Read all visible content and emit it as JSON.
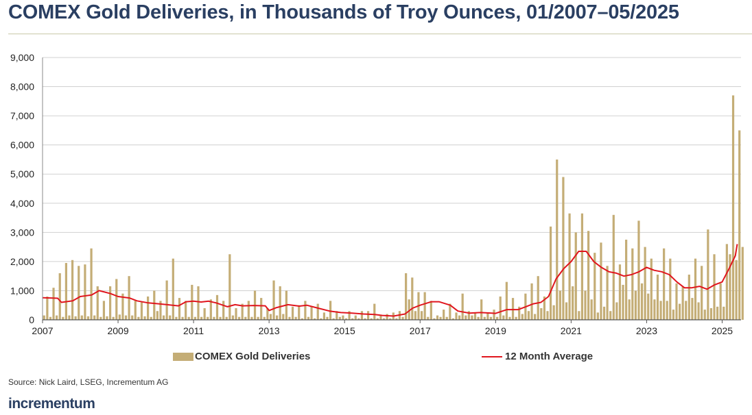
{
  "title": "COMEX Gold Deliveries, in Thousands of Troy Ounces, 01/2007–05/2025",
  "source": "Source: Nick Laird, LSEG, Incrementum AG",
  "brand": "incrementum",
  "colors": {
    "title": "#2a3f62",
    "bars": "#c4ad76",
    "line": "#e0151d",
    "grid": "#d0d0d0",
    "rule": "#c9c9a8"
  },
  "chart_data": {
    "type": "bar",
    "x_start": "2007-01",
    "x_end": "2025-05",
    "y_range": [
      0,
      9000
    ],
    "grid": "horizontal",
    "legend_position": "bottom",
    "y_ticks": [
      "0",
      "1,000",
      "2,000",
      "3,000",
      "4,000",
      "5,000",
      "6,000",
      "7,000",
      "8,000",
      "9,000"
    ],
    "x_ticks": [
      "2007",
      "2009",
      "2011",
      "2013",
      "2015",
      "2017",
      "2019",
      "2021",
      "2023",
      "2025"
    ],
    "series": [
      {
        "name": "COMEX Gold Deliveries",
        "type": "bar",
        "values": [
          150,
          800,
          100,
          1100,
          150,
          1600,
          100,
          1950,
          150,
          2050,
          120,
          1850,
          150,
          1900,
          120,
          2450,
          150,
          1150,
          100,
          650,
          120,
          1150,
          100,
          1400,
          180,
          900,
          150,
          1500,
          150,
          650,
          100,
          600,
          120,
          800,
          100,
          1000,
          300,
          650,
          150,
          1350,
          150,
          2100,
          100,
          750,
          100,
          650,
          100,
          1200,
          100,
          1150,
          100,
          400,
          100,
          700,
          100,
          850,
          100,
          650,
          100,
          2250,
          150,
          400,
          100,
          550,
          100,
          650,
          100,
          1000,
          100,
          750,
          100,
          400,
          200,
          1350,
          150,
          1150,
          200,
          1000,
          100,
          450,
          100,
          500,
          50,
          650,
          100,
          450,
          50,
          550,
          50,
          250,
          100,
          650,
          50,
          300,
          100,
          150,
          50,
          300,
          50,
          150,
          50,
          300,
          50,
          300,
          50,
          550,
          50,
          150,
          50,
          200,
          50,
          250,
          50,
          300,
          100,
          1600,
          700,
          1450,
          300,
          950,
          300,
          950,
          100,
          650,
          50,
          150,
          100,
          350,
          100,
          550,
          50,
          250,
          150,
          900,
          150,
          300,
          150,
          250,
          100,
          700,
          100,
          250,
          100,
          350,
          100,
          800,
          150,
          1300,
          100,
          750,
          100,
          450,
          200,
          900,
          300,
          1250,
          200,
          1500,
          400,
          800,
          300,
          3200,
          500,
          5500,
          1000,
          4900,
          600,
          3650,
          1150,
          3000,
          300,
          3650,
          1000,
          3050,
          700,
          2300,
          250,
          2650,
          450,
          1850,
          300,
          3600,
          600,
          1900,
          1200,
          2750,
          700,
          2450,
          1000,
          3400,
          1250,
          2500,
          900,
          2100,
          700,
          1550,
          650,
          2450,
          650,
          2100,
          350,
          1250,
          550,
          1150,
          650,
          1550,
          750,
          2100,
          600,
          1850,
          350,
          3100,
          400,
          2250,
          450,
          1250,
          450,
          2600,
          2250,
          7700,
          2050,
          6500,
          2500
        ]
      },
      {
        "name": "12 Month Average",
        "type": "line",
        "points": [
          [
            2007.0,
            760
          ],
          [
            2007.4,
            740
          ],
          [
            2007.5,
            600
          ],
          [
            2007.8,
            650
          ],
          [
            2008.0,
            800
          ],
          [
            2008.3,
            850
          ],
          [
            2008.5,
            1000
          ],
          [
            2008.8,
            900
          ],
          [
            2009.0,
            800
          ],
          [
            2009.3,
            750
          ],
          [
            2009.5,
            650
          ],
          [
            2009.8,
            580
          ],
          [
            2010.0,
            560
          ],
          [
            2010.3,
            520
          ],
          [
            2010.6,
            480
          ],
          [
            2010.8,
            620
          ],
          [
            2011.0,
            640
          ],
          [
            2011.2,
            610
          ],
          [
            2011.4,
            640
          ],
          [
            2011.6,
            580
          ],
          [
            2011.9,
            450
          ],
          [
            2012.1,
            520
          ],
          [
            2012.3,
            480
          ],
          [
            2012.6,
            490
          ],
          [
            2012.9,
            480
          ],
          [
            2013.0,
            320
          ],
          [
            2013.2,
            420
          ],
          [
            2013.5,
            520
          ],
          [
            2013.8,
            470
          ],
          [
            2014.0,
            500
          ],
          [
            2014.3,
            400
          ],
          [
            2014.6,
            300
          ],
          [
            2014.9,
            250
          ],
          [
            2015.2,
            230
          ],
          [
            2015.5,
            200
          ],
          [
            2015.8,
            180
          ],
          [
            2016.0,
            150
          ],
          [
            2016.3,
            130
          ],
          [
            2016.6,
            200
          ],
          [
            2016.8,
            400
          ],
          [
            2017.0,
            500
          ],
          [
            2017.3,
            620
          ],
          [
            2017.5,
            620
          ],
          [
            2017.8,
            500
          ],
          [
            2018.0,
            300
          ],
          [
            2018.3,
            230
          ],
          [
            2018.6,
            250
          ],
          [
            2018.9,
            230
          ],
          [
            2019.0,
            220
          ],
          [
            2019.3,
            350
          ],
          [
            2019.6,
            350
          ],
          [
            2019.8,
            450
          ],
          [
            2020.0,
            550
          ],
          [
            2020.2,
            600
          ],
          [
            2020.4,
            800
          ],
          [
            2020.6,
            1400
          ],
          [
            2020.8,
            1750
          ],
          [
            2021.0,
            2000
          ],
          [
            2021.2,
            2350
          ],
          [
            2021.4,
            2350
          ],
          [
            2021.6,
            2000
          ],
          [
            2021.8,
            1800
          ],
          [
            2022.0,
            1650
          ],
          [
            2022.2,
            1600
          ],
          [
            2022.4,
            1500
          ],
          [
            2022.6,
            1550
          ],
          [
            2022.8,
            1650
          ],
          [
            2023.0,
            1800
          ],
          [
            2023.2,
            1700
          ],
          [
            2023.4,
            1650
          ],
          [
            2023.6,
            1550
          ],
          [
            2023.8,
            1300
          ],
          [
            2024.0,
            1100
          ],
          [
            2024.2,
            1100
          ],
          [
            2024.4,
            1150
          ],
          [
            2024.6,
            1050
          ],
          [
            2024.8,
            1200
          ],
          [
            2025.0,
            1300
          ],
          [
            2025.2,
            1800
          ],
          [
            2025.35,
            2200
          ],
          [
            2025.4,
            2600
          ]
        ]
      }
    ]
  }
}
